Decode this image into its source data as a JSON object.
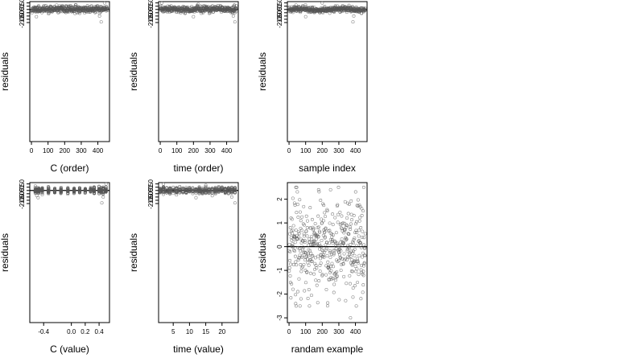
{
  "figure": {
    "background": "#ffffff",
    "point_color": "#555555",
    "axis_color": "#000000"
  },
  "chart_data": [
    {
      "type": "scatter",
      "xlabel": "C (order)",
      "ylabel": "residuals",
      "xlim": [
        -10,
        470
      ],
      "ylim": [
        -20.2,
        1.2
      ],
      "xticks": [
        0,
        100,
        200,
        300,
        400
      ],
      "yticks": [
        1.0,
        0.5,
        0.0,
        -0.5,
        -1.0,
        -1.5,
        -2.0
      ],
      "ytick_labels": [
        "1.0",
        "0.5",
        "0.0",
        "-0.5",
        "-1.0",
        "-1.5",
        "-2.0"
      ],
      "hline": 0,
      "n": 460,
      "seed": 11,
      "distribution": "residual-order",
      "outliers": [
        [
          440,
          1.0
        ],
        [
          420,
          -1.9
        ],
        [
          30,
          -1.1
        ],
        [
          410,
          -1.0
        ]
      ]
    },
    {
      "type": "scatter",
      "xlabel": "time (order)",
      "ylabel": "residuals",
      "xlim": [
        -10,
        470
      ],
      "ylim": [
        -20.2,
        1.2
      ],
      "xticks": [
        0,
        100,
        200,
        300,
        400
      ],
      "yticks": [
        1.0,
        0.5,
        0.0,
        -0.5,
        -1.0,
        -1.5,
        -2.0
      ],
      "ytick_labels": [
        "1.0",
        "0.5",
        "0.0",
        "-0.5",
        "-1.0",
        "-1.5",
        "-2.0"
      ],
      "hline": 0,
      "n": 460,
      "seed": 23,
      "distribution": "residual-order",
      "outliers": [
        [
          10,
          1.0
        ],
        [
          450,
          -1.9
        ],
        [
          200,
          -1.1
        ],
        [
          440,
          -1.0
        ]
      ]
    },
    {
      "type": "scatter",
      "xlabel": "sample index",
      "ylabel": "residuals",
      "xlim": [
        -10,
        470
      ],
      "ylim": [
        -20.2,
        1.2
      ],
      "xticks": [
        0,
        100,
        200,
        300,
        400
      ],
      "yticks": [
        1.0,
        0.5,
        0.0,
        -0.5,
        -1.0,
        -1.5,
        -2.0
      ],
      "ytick_labels": [
        "1.0",
        "0.5",
        "0.0",
        "-0.5",
        "-1.0",
        "-1.5",
        "-2.0"
      ],
      "hline": 0,
      "n": 460,
      "seed": 37,
      "distribution": "residual-wave",
      "outliers": [
        [
          200,
          1.0
        ],
        [
          385,
          -1.9
        ],
        [
          100,
          -1.1
        ],
        [
          390,
          -1.0
        ]
      ]
    },
    {
      "type": "scatter",
      "xlabel": "C (value)",
      "ylabel": "residuals",
      "xlim": [
        -0.6,
        0.55
      ],
      "ylim": [
        -20.2,
        1.2
      ],
      "xticks": [
        -0.4,
        0.0,
        0.2,
        0.4
      ],
      "xtick_labels": [
        "-0.4",
        "0.0",
        "0.2",
        "0.4"
      ],
      "yticks": [
        1.0,
        0.5,
        0.0,
        -0.5,
        -1.0,
        -1.5,
        -2.0
      ],
      "ytick_labels": [
        "1.0",
        "0.5",
        "0.0",
        "-0.5",
        "-1.0",
        "-1.5",
        "-2.0"
      ],
      "hline": 0,
      "n": 460,
      "seed": 41,
      "distribution": "residual-columns",
      "columns": [
        -0.52,
        -0.5,
        -0.47,
        -0.42,
        -0.33,
        -0.24,
        -0.15,
        -0.05,
        0.04,
        0.12,
        0.2,
        0.28,
        0.33,
        0.4,
        0.43,
        0.46,
        0.5
      ],
      "outliers": [
        [
          0.5,
          1.0
        ],
        [
          0.44,
          -1.9
        ],
        [
          -0.48,
          -1.1
        ],
        [
          0.46,
          -1.0
        ]
      ]
    },
    {
      "type": "scatter",
      "xlabel": "time (value)",
      "ylabel": "residuals",
      "xlim": [
        0.5,
        25
      ],
      "ylim": [
        -20.2,
        1.2
      ],
      "xticks": [
        5,
        10,
        15,
        20
      ],
      "yticks": [
        1.0,
        0.5,
        0.0,
        -0.5,
        -1.0,
        -1.5,
        -2.0
      ],
      "ytick_labels": [
        "1.0",
        "0.5",
        "0.0",
        "-0.5",
        "-1.0",
        "-1.5",
        "-2.0"
      ],
      "hline": 0,
      "n": 460,
      "seed": 53,
      "distribution": "residual-columns",
      "columns": [
        1,
        2,
        3,
        4,
        5,
        6,
        7,
        8,
        9,
        10,
        11,
        12,
        13,
        14,
        15,
        16,
        17,
        18,
        19,
        20,
        21,
        22,
        23,
        24
      ],
      "outliers": [
        [
          2,
          1.0
        ],
        [
          24,
          -1.9
        ],
        [
          12,
          -1.1
        ],
        [
          23,
          -1.0
        ]
      ]
    },
    {
      "type": "scatter",
      "xlabel": "randam example",
      "ylabel": "residuals",
      "xlim": [
        -10,
        470
      ],
      "ylim": [
        -3.2,
        2.7
      ],
      "xticks": [
        0,
        100,
        200,
        300,
        400
      ],
      "yticks": [
        2,
        1,
        0,
        -1,
        -2,
        -3
      ],
      "ytick_labels": [
        "2",
        "1",
        "0",
        "-1",
        "-2",
        "-3"
      ],
      "hline": 0,
      "n": 460,
      "seed": 67,
      "distribution": "normal",
      "outliers": [
        [
          370,
          -3.0
        ],
        [
          250,
          2.4
        ],
        [
          450,
          2.5
        ],
        [
          40,
          -2.4
        ]
      ]
    }
  ]
}
